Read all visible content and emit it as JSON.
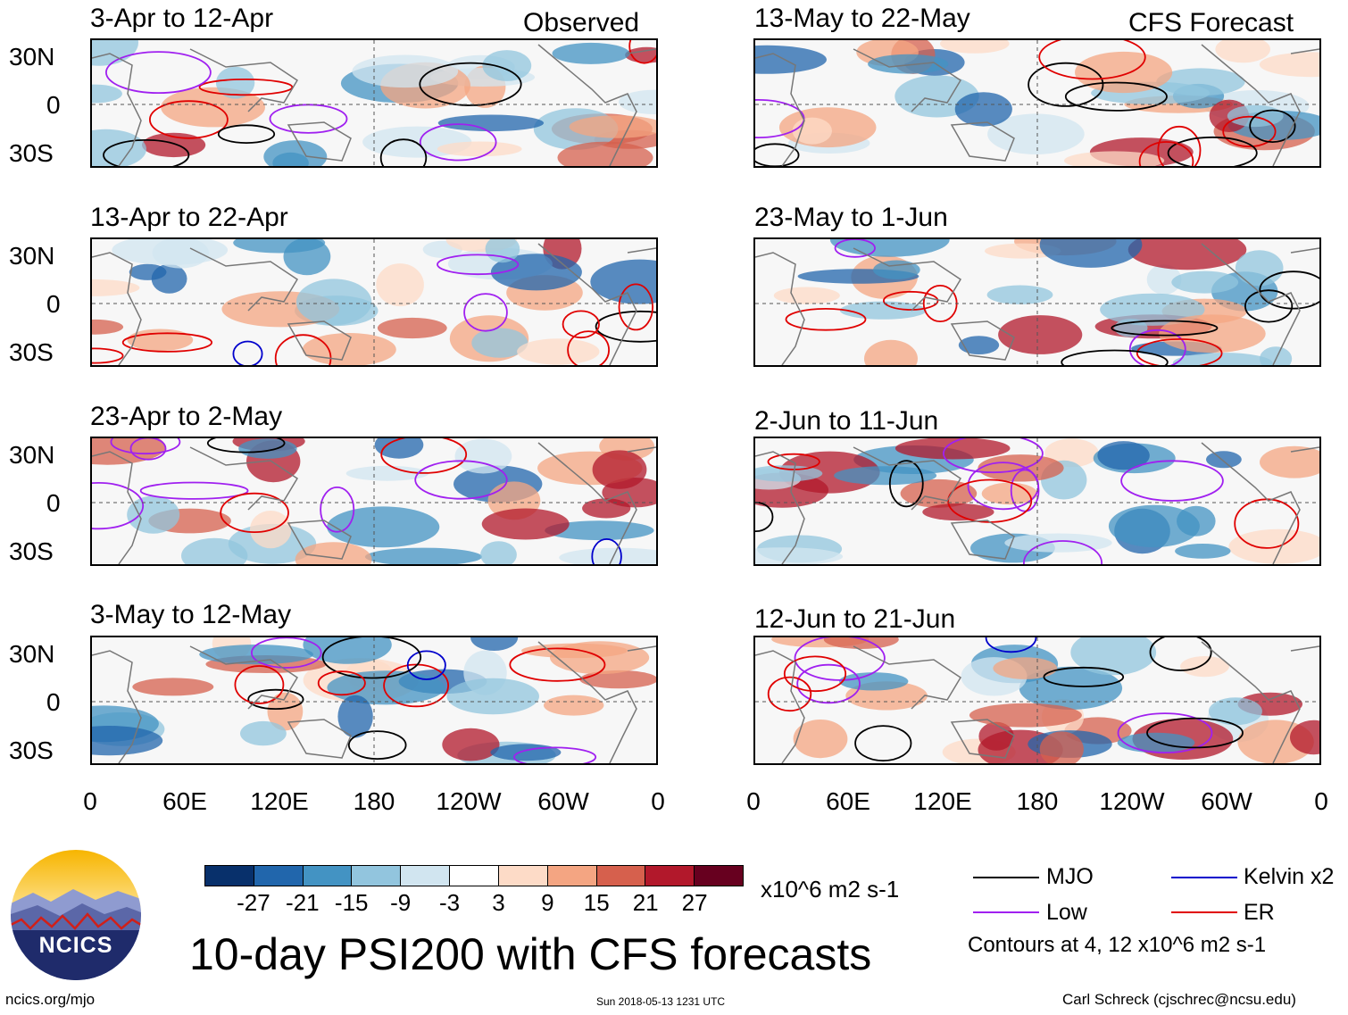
{
  "chart_data": {
    "type": "heatmap",
    "title": "10-day PSI200 with CFS forecasts",
    "variable": "PSI200 anomaly",
    "units": "x10^6 m2 s-1",
    "x_ticks": [
      "0",
      "60E",
      "120E",
      "180",
      "120W",
      "60W",
      "0"
    ],
    "y_ticks": [
      "30N",
      "0",
      "30S"
    ],
    "colorbar": {
      "ticks": [
        "-27",
        "-21",
        "-15",
        "-9",
        "-3",
        "3",
        "9",
        "15",
        "21",
        "27"
      ],
      "colors": [
        "#08306b",
        "#2166ac",
        "#4393c3",
        "#92c5de",
        "#d1e5f0",
        "#ffffff",
        "#fddbc7",
        "#f4a582",
        "#d6604d",
        "#b2182b",
        "#67001f"
      ]
    },
    "observed_label": "Observed",
    "forecast_label": "CFS Forecast",
    "panels_observed": [
      {
        "period": "3-Apr to 12-Apr"
      },
      {
        "period": "13-Apr to 22-Apr"
      },
      {
        "period": "23-Apr to 2-May"
      },
      {
        "period": "3-May to 12-May"
      }
    ],
    "panels_forecast": [
      {
        "period": "13-May to 22-May"
      },
      {
        "period": "23-May to 1-Jun"
      },
      {
        "period": "2-Jun to 11-Jun"
      },
      {
        "period": "12-Jun to 21-Jun"
      }
    ],
    "contour_legend": [
      {
        "name": "MJO",
        "color": "#000000"
      },
      {
        "name": "Kelvin x2",
        "color": "#0000cc"
      },
      {
        "name": "Low",
        "color": "#a020f0"
      },
      {
        "name": "ER",
        "color": "#e00000"
      }
    ],
    "contour_note": "Contours at 4, 12 x10^6 m2 s-1"
  },
  "logo_text": "NCICS",
  "footer": {
    "left": "ncics.org/mjo",
    "timestamp": "Sun 2018-05-13 1231 UTC",
    "credit": "Carl Schreck (cjschrec@ncsu.edu)"
  }
}
